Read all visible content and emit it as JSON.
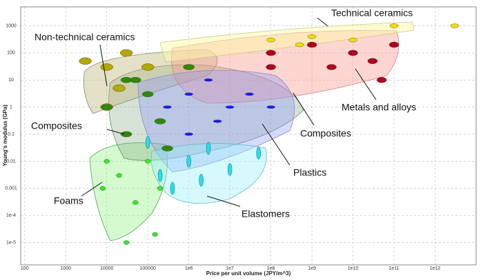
{
  "chart_data": {
    "type": "scatter",
    "x_label": "Price per unit volume (JPY/m^3)",
    "y_label": "Young's modulus (GPa)",
    "log_x": true,
    "log_y": true,
    "grid": true,
    "xlim": [
      80,
      10000000000000
    ],
    "ylim": [
      1.5e-06,
      5000
    ],
    "xticks": [
      100,
      1000,
      10000,
      100000,
      {
        "value": 1000000,
        "label": "1e6"
      },
      {
        "value": 10000000,
        "label": "1e7"
      },
      {
        "value": 100000000,
        "label": "1e8"
      },
      {
        "value": 1000000000,
        "label": "1e9"
      },
      {
        "value": 10000000000,
        "label": "1e10"
      },
      {
        "value": 100000000000,
        "label": "1e11"
      },
      {
        "value": 1000000000000,
        "label": "1e12"
      }
    ],
    "yticks": [
      1000,
      100,
      10,
      1,
      0.1,
      0.01,
      0.001,
      {
        "value": 0.0001,
        "label": "1e-4"
      },
      {
        "value": 1e-05,
        "label": "1e-5"
      }
    ],
    "annotations": [
      "Technical ceramics",
      "Non-technical ceramics",
      "Metals and alloys",
      "Composites",
      "Composites",
      "Plastics",
      "Foams",
      "Elastomers"
    ],
    "series": [
      {
        "color": "#b5a800",
        "x": [
          10000,
          3000,
          10000,
          30000,
          100000,
          20000
        ],
        "y": [
          30,
          50,
          1,
          100,
          30,
          5
        ]
      },
      {
        "color": "#2e8b00",
        "x": [
          10000,
          50000,
          200000,
          100000,
          30000,
          1000000,
          300000,
          30000
        ],
        "y": [
          1,
          10,
          0.3,
          3,
          0.1,
          30,
          0.03,
          10
        ]
      },
      {
        "color": "#b0001a",
        "x": [
          100000000,
          1000000000,
          100000000000,
          30000000000,
          50000000000,
          100000000,
          10000000000,
          3000000000
        ],
        "y": [
          100,
          200,
          200,
          50,
          10,
          30,
          100,
          30
        ]
      },
      {
        "color": "#f0e000",
        "x": [
          100000000,
          1000000000,
          100000000000,
          3000000000000,
          10000000000,
          500000000
        ],
        "y": [
          300,
          400,
          1000,
          1000,
          300,
          200
        ]
      },
      {
        "color": "#1a1aff",
        "x": [
          1000000,
          3000000,
          10000000,
          300000,
          5000000,
          30000000,
          100000000,
          1000000
        ],
        "y": [
          3,
          10,
          1,
          1,
          0.3,
          3,
          1,
          0.1
        ]
      },
      {
        "color": "#22e0f0",
        "x": [
          200000,
          1000000,
          3000000,
          10000000,
          50000000,
          400000,
          2000000,
          100000
        ],
        "y": [
          0.003,
          0.01,
          0.03,
          0.005,
          0.02,
          0.001,
          0.002,
          0.05
        ]
      },
      {
        "color": "#33ee22",
        "x": [
          20000,
          10000,
          50000,
          150000,
          30000,
          200000,
          100000,
          8000
        ],
        "y": [
          0.003,
          0.01,
          0.0003,
          2e-05,
          1e-05,
          0.001,
          0.01,
          0.001
        ]
      }
    ]
  }
}
